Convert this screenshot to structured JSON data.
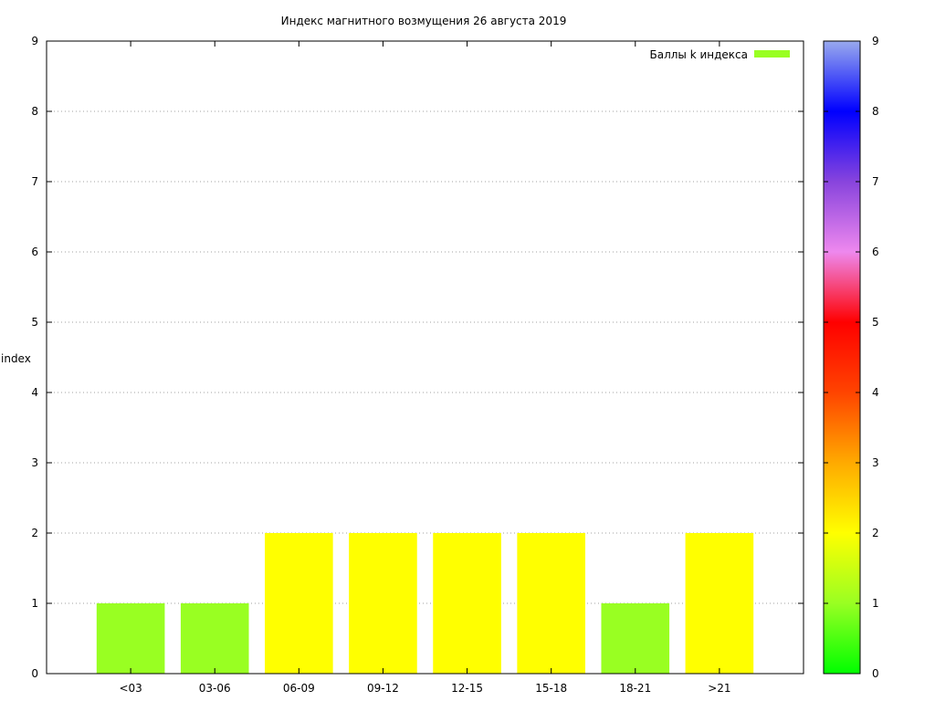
{
  "chart_data": {
    "type": "bar",
    "title": "Индекс магнитного возмущения 26 августа 2019",
    "ylabel": "index",
    "xlabel": "",
    "ylim": [
      0,
      9
    ],
    "yticks": [
      0,
      1,
      2,
      3,
      4,
      5,
      6,
      7,
      8,
      9
    ],
    "categories": [
      "<03",
      "03-06",
      "06-09",
      "09-12",
      "12-15",
      "15-18",
      "18-21",
      ">21"
    ],
    "values": [
      1,
      1,
      2,
      2,
      2,
      2,
      1,
      2
    ],
    "grid": true,
    "legend": {
      "position": "top-right",
      "label": "Баллы k индекса",
      "color": "#99ff22"
    },
    "colorbar": {
      "range": [
        0,
        9
      ],
      "ticks": [
        0,
        1,
        2,
        3,
        4,
        5,
        6,
        7,
        8,
        9
      ],
      "stops": [
        {
          "value": 0,
          "color": "#00ff00"
        },
        {
          "value": 1,
          "color": "#99ff22"
        },
        {
          "value": 2,
          "color": "#ffff00"
        },
        {
          "value": 3,
          "color": "#ffaa00"
        },
        {
          "value": 4,
          "color": "#ff4400"
        },
        {
          "value": 5,
          "color": "#ff0000"
        },
        {
          "value": 6,
          "color": "#ee88ee"
        },
        {
          "value": 7,
          "color": "#8844dd"
        },
        {
          "value": 8,
          "color": "#0000ff"
        },
        {
          "value": 9,
          "color": "#99aaee"
        }
      ]
    }
  }
}
